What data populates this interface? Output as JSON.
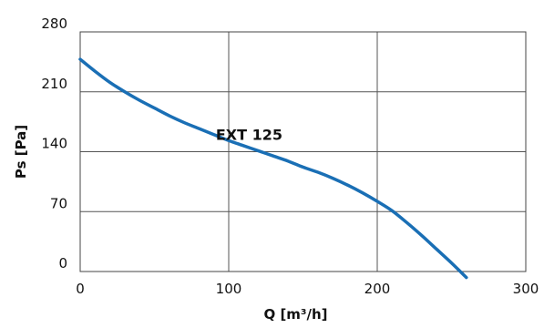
{
  "chart_data": {
    "type": "line",
    "xlabel": "Q [m³/h]",
    "ylabel": "Ps [Pa]",
    "xlim": [
      0,
      300
    ],
    "ylim": [
      0,
      280
    ],
    "x_ticks": [
      0,
      100,
      200,
      300
    ],
    "y_ticks": [
      0,
      70,
      140,
      210,
      280
    ],
    "x_tick_labels": [
      "0",
      "100",
      "200",
      "300"
    ],
    "y_tick_labels": [
      "0",
      "70",
      "140",
      "210",
      "280"
    ],
    "grid": true,
    "line_color": "#1a6fb5",
    "series": [
      {
        "name": "EXT 125",
        "x": [
          0,
          10,
          20,
          30,
          40,
          50,
          60,
          70,
          80,
          90,
          100,
          110,
          120,
          130,
          140,
          150,
          160,
          170,
          180,
          190,
          200,
          210,
          220,
          230,
          240,
          250,
          260
        ],
        "y": [
          248,
          234,
          221,
          210,
          200,
          191,
          182,
          174,
          167,
          160,
          153,
          147,
          141,
          135,
          129,
          122,
          116,
          109,
          101,
          92,
          82,
          71,
          57,
          42,
          26,
          10,
          -7
        ]
      }
    ],
    "annotations": [
      {
        "text": "EXT 125",
        "x": 115,
        "y": 160
      }
    ]
  }
}
